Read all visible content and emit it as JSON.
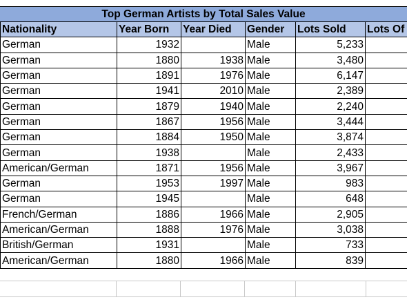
{
  "title": "Top German Artists by Total Sales Value",
  "headers": [
    "Nationality",
    "Year Born",
    "Year Died",
    "Gender",
    "Lots Sold",
    "Lots Of"
  ],
  "rows": [
    [
      "German",
      "1932",
      "",
      "Male",
      "5,233",
      ""
    ],
    [
      "German",
      "1880",
      "1938",
      "Male",
      "3,480",
      ""
    ],
    [
      "German",
      "1891",
      "1976",
      "Male",
      "6,147",
      ""
    ],
    [
      "German",
      "1941",
      "2010",
      "Male",
      "2,389",
      ""
    ],
    [
      "German",
      "1879",
      "1940",
      "Male",
      "2,240",
      ""
    ],
    [
      "German",
      "1867",
      "1956",
      "Male",
      "3,444",
      ""
    ],
    [
      "German",
      "1884",
      "1950",
      "Male",
      "3,874",
      ""
    ],
    [
      "German",
      "1938",
      "",
      "Male",
      "2,433",
      ""
    ],
    [
      "American/German",
      "1871",
      "1956",
      "Male",
      "3,967",
      ""
    ],
    [
      "German",
      "1953",
      "1997",
      "Male",
      "983",
      ""
    ],
    [
      "German",
      "1945",
      "",
      "Male",
      "648",
      ""
    ],
    [
      "French/German",
      "1886",
      "1966",
      "Male",
      "2,905",
      ""
    ],
    [
      "American/German",
      "1888",
      "1976",
      "Male",
      "3,038",
      ""
    ],
    [
      "British/German",
      "1931",
      "",
      "Male",
      "733",
      ""
    ],
    [
      "American/German",
      "1880",
      "1966",
      "Male",
      "839",
      ""
    ]
  ]
}
